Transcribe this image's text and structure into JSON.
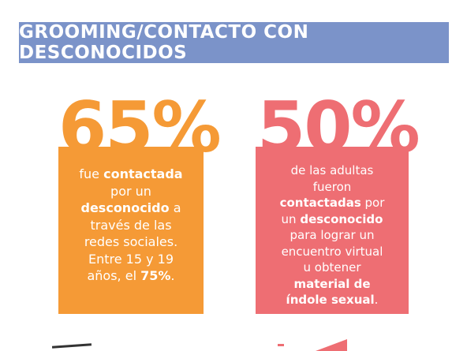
{
  "header": {
    "title": "GROOMING/CONTACTO CON DESCONOCIDOS"
  },
  "stat_left": {
    "value": "65%",
    "lines": [
      [
        {
          "t": "fue "
        },
        {
          "t": "contactada",
          "b": true
        }
      ],
      [
        {
          "t": "por un"
        }
      ],
      [
        {
          "t": "desconocido",
          "b": true
        },
        {
          "t": " a"
        }
      ],
      [
        {
          "t": "través de las"
        }
      ],
      [
        {
          "t": "redes sociales."
        }
      ],
      [
        {
          "t": "Entre 15 y 19"
        }
      ],
      [
        {
          "t": "años, el "
        },
        {
          "t": "75%",
          "b": true
        },
        {
          "t": "."
        }
      ]
    ]
  },
  "stat_right": {
    "value": "50%",
    "lines": [
      [
        {
          "t": "de las adultas"
        }
      ],
      [
        {
          "t": "fueron"
        }
      ],
      [
        {
          "t": "contactadas",
          "b": true
        },
        {
          "t": " por"
        }
      ],
      [
        {
          "t": "un "
        },
        {
          "t": "desconocido",
          "b": true
        }
      ],
      [
        {
          "t": "para lograr un"
        }
      ],
      [
        {
          "t": "encuentro virtual"
        }
      ],
      [
        {
          "t": "u obtener"
        }
      ],
      [
        {
          "t": "material de",
          "b": true
        }
      ],
      [
        {
          "t": "índole sexual",
          "b": true
        },
        {
          "t": "."
        }
      ]
    ]
  },
  "colors": {
    "band": "#7b93c9",
    "orange": "#f59a36",
    "pink": "#ee6e73"
  }
}
